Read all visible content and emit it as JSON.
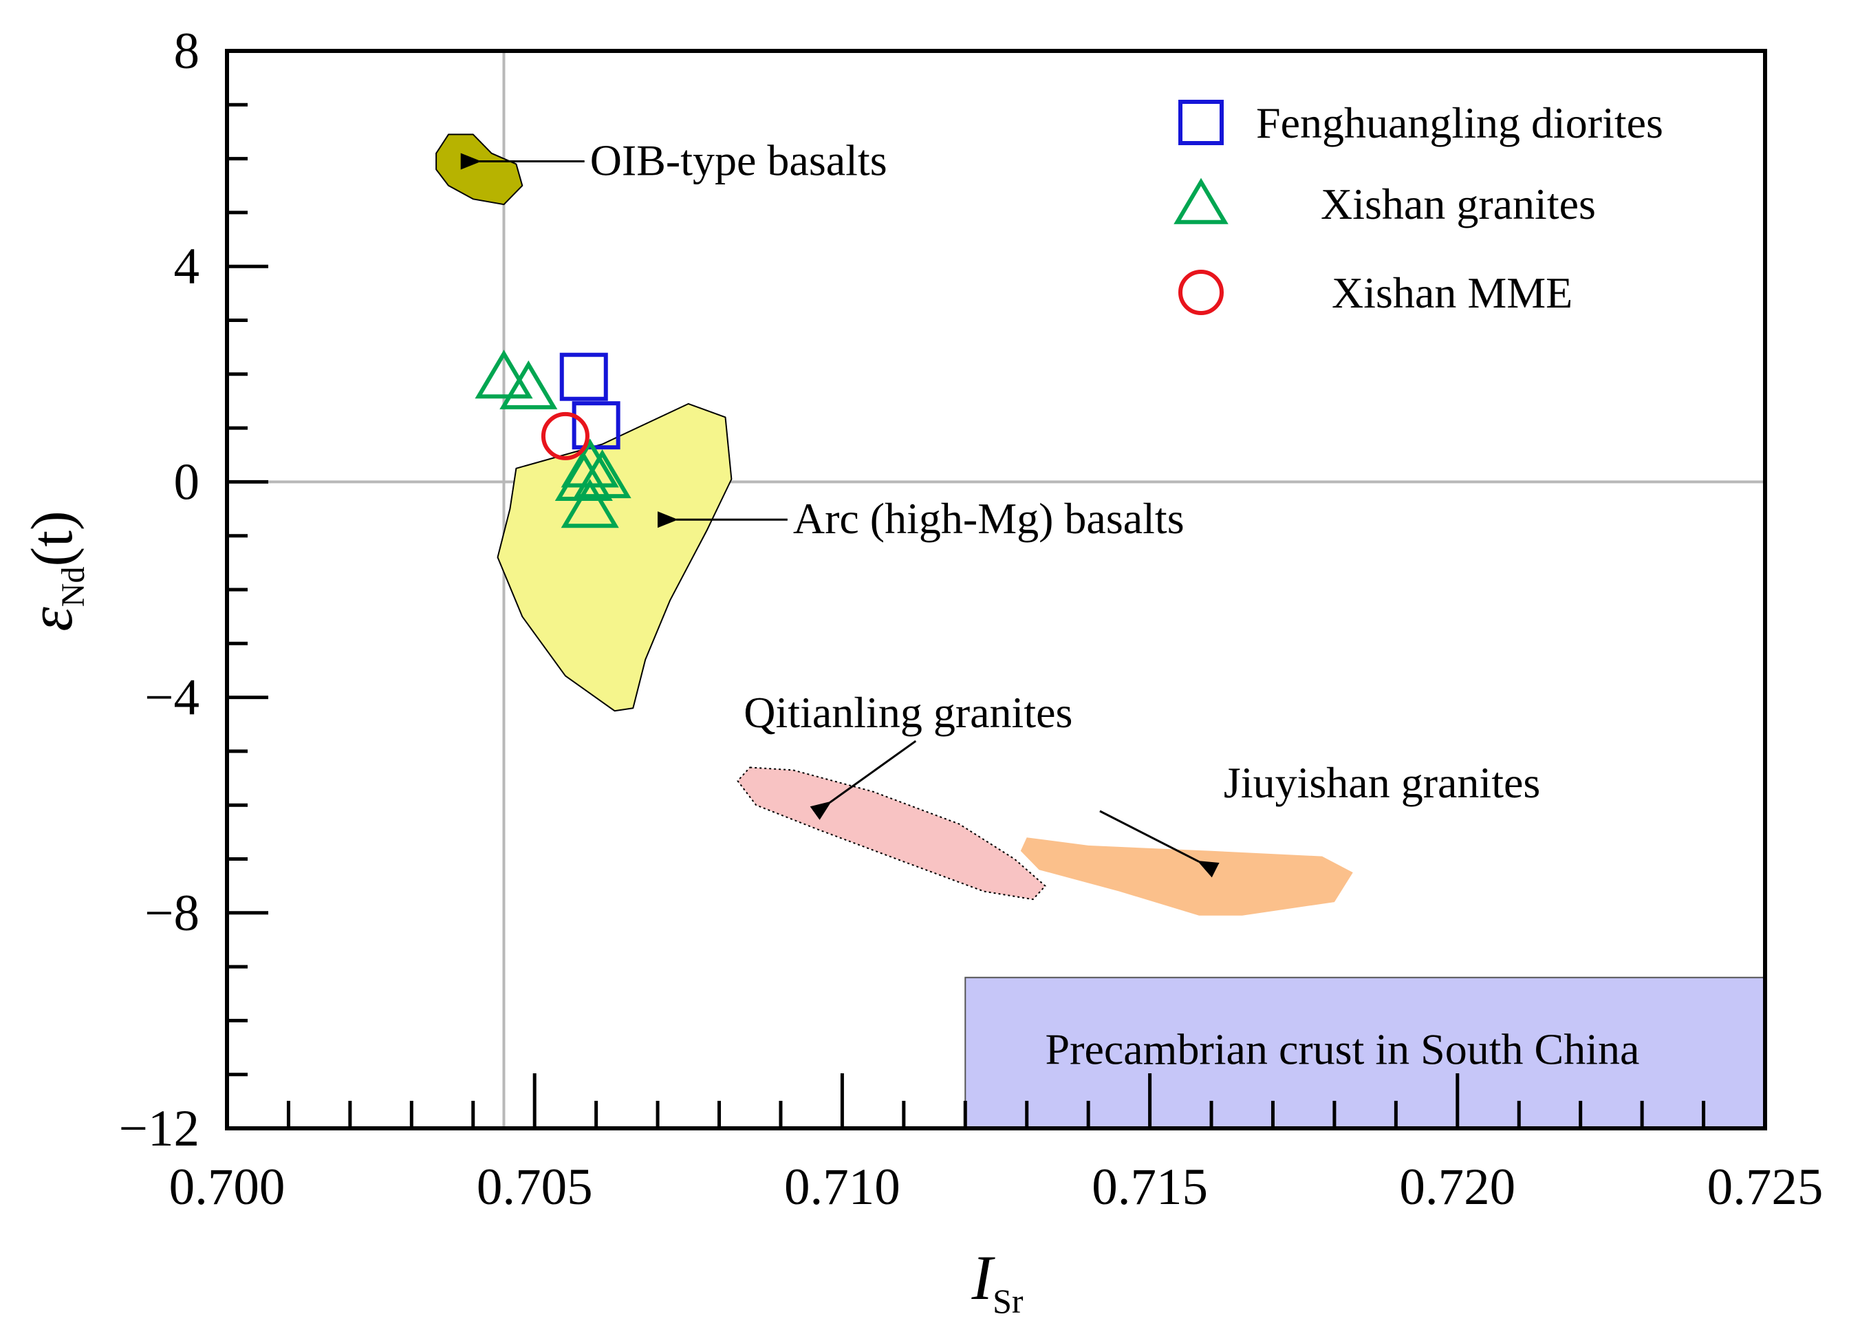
{
  "chart_data": {
    "type": "scatter",
    "xlabel": {
      "main": "I",
      "sub": "Sr"
    },
    "ylabel": {
      "main": "ε",
      "sub": "Nd",
      "suffix": "(t)"
    },
    "xlim": [
      0.7,
      0.725
    ],
    "ylim": [
      -12,
      8
    ],
    "xticks": [
      {
        "value": 0.7,
        "label": "0.700"
      },
      {
        "value": 0.705,
        "label": "0.705"
      },
      {
        "value": 0.71,
        "label": "0.710"
      },
      {
        "value": 0.715,
        "label": "0.715"
      },
      {
        "value": 0.72,
        "label": "0.720"
      },
      {
        "value": 0.725,
        "label": "0.725"
      }
    ],
    "yticks": [
      {
        "value": 8,
        "label": "8"
      },
      {
        "value": 4,
        "label": "4"
      },
      {
        "value": 0,
        "label": "0"
      },
      {
        "value": -4,
        "label": "−4"
      },
      {
        "value": -8,
        "label": "−8"
      },
      {
        "value": -12,
        "label": "−12"
      }
    ],
    "reference_lines": {
      "x": 0.7045,
      "y": 0
    },
    "series": [
      {
        "name": "Fenghuangling diorites",
        "marker": "square",
        "color": "#1515d8",
        "points": [
          {
            "x": 0.7058,
            "y": 1.95
          },
          {
            "x": 0.706,
            "y": 1.05
          }
        ]
      },
      {
        "name": "Xishan granites",
        "marker": "triangle",
        "color": "#00a651",
        "points": [
          {
            "x": 0.7045,
            "y": 1.95
          },
          {
            "x": 0.7049,
            "y": 1.75
          },
          {
            "x": 0.7059,
            "y": 0.3
          },
          {
            "x": 0.7058,
            "y": 0.05
          },
          {
            "x": 0.7061,
            "y": 0.1
          },
          {
            "x": 0.7059,
            "y": -0.45
          }
        ]
      },
      {
        "name": "Xishan MME",
        "marker": "circle",
        "color": "#e8141c",
        "points": [
          {
            "x": 0.7055,
            "y": 0.85
          }
        ]
      }
    ],
    "fields": [
      {
        "name": "OIB-type basalts",
        "fill": "#b7b300",
        "stroke": "#000000",
        "dashed": false,
        "polygon": [
          [
            0.7034,
            6.1
          ],
          [
            0.7036,
            6.45
          ],
          [
            0.704,
            6.45
          ],
          [
            0.7043,
            6.1
          ],
          [
            0.7047,
            5.9
          ],
          [
            0.7048,
            5.5
          ],
          [
            0.7045,
            5.15
          ],
          [
            0.704,
            5.25
          ],
          [
            0.7036,
            5.5
          ],
          [
            0.7034,
            5.8
          ]
        ]
      },
      {
        "name": "Arc (high-Mg) basalts",
        "fill": "#f5f58c",
        "stroke": "#000000",
        "dashed": false,
        "polygon": [
          [
            0.7047,
            0.25
          ],
          [
            0.7061,
            0.7
          ],
          [
            0.7075,
            1.45
          ],
          [
            0.7081,
            1.2
          ],
          [
            0.7082,
            0.05
          ],
          [
            0.7078,
            -0.9
          ],
          [
            0.7072,
            -2.2
          ],
          [
            0.7068,
            -3.3
          ],
          [
            0.7066,
            -4.2
          ],
          [
            0.7063,
            -4.25
          ],
          [
            0.7055,
            -3.6
          ],
          [
            0.7048,
            -2.5
          ],
          [
            0.7044,
            -1.4
          ],
          [
            0.7046,
            -0.5
          ]
        ]
      },
      {
        "name": "Qitianling granites",
        "fill": "#f8c3c3",
        "stroke": "#000000",
        "dashed": true,
        "polygon": [
          [
            0.7085,
            -5.3
          ],
          [
            0.7092,
            -5.35
          ],
          [
            0.7105,
            -5.75
          ],
          [
            0.7119,
            -6.35
          ],
          [
            0.7128,
            -7.0
          ],
          [
            0.7133,
            -7.5
          ],
          [
            0.7131,
            -7.75
          ],
          [
            0.7123,
            -7.6
          ],
          [
            0.711,
            -7.05
          ],
          [
            0.7096,
            -6.45
          ],
          [
            0.7086,
            -6.0
          ],
          [
            0.7083,
            -5.55
          ]
        ]
      },
      {
        "name": "Jiuyishan granites",
        "fill": "#fbc08b",
        "stroke": "none",
        "dashed": false,
        "polygon": [
          [
            0.713,
            -6.6
          ],
          [
            0.714,
            -6.75
          ],
          [
            0.716,
            -6.85
          ],
          [
            0.7178,
            -6.95
          ],
          [
            0.7183,
            -7.25
          ],
          [
            0.718,
            -7.8
          ],
          [
            0.7165,
            -8.05
          ],
          [
            0.7158,
            -8.05
          ],
          [
            0.7145,
            -7.6
          ],
          [
            0.7132,
            -7.2
          ],
          [
            0.7129,
            -6.85
          ]
        ]
      }
    ],
    "regions": [
      {
        "name": "Precambrian crust in South China",
        "fill": "#c6c6f8",
        "x": [
          0.712,
          0.725
        ],
        "y": [
          -12,
          -9.2
        ]
      }
    ],
    "annotations": [
      {
        "text": "OIB-type basalts",
        "x": 0.7059,
        "y": 5.95,
        "arrow_to": [
          0.7041,
          5.95
        ]
      },
      {
        "text": "Arc (high-Mg) basalts",
        "x": 0.7092,
        "y": -0.7,
        "arrow_to": [
          0.7073,
          -0.7
        ]
      },
      {
        "text": "Qitianling granites",
        "x": 0.7084,
        "y": -4.3,
        "arrow_to": [
          0.7098,
          -5.95
        ]
      },
      {
        "text": "Jiuyishan granites",
        "x": 0.7162,
        "y": -5.6,
        "arrow_to": [
          0.7158,
          -7.05
        ]
      },
      {
        "text": "Precambrian crust in South China",
        "x": 0.7133,
        "y": -10.55,
        "arrow_to": null
      }
    ],
    "legend": {
      "position": "top-right",
      "entries": [
        {
          "label": "Fenghuangling diorites",
          "marker": "square",
          "color": "#1515d8"
        },
        {
          "label": "Xishan granites",
          "marker": "triangle",
          "color": "#00a651"
        },
        {
          "label": "Xishan MME",
          "marker": "circle",
          "color": "#e8141c"
        }
      ]
    }
  }
}
